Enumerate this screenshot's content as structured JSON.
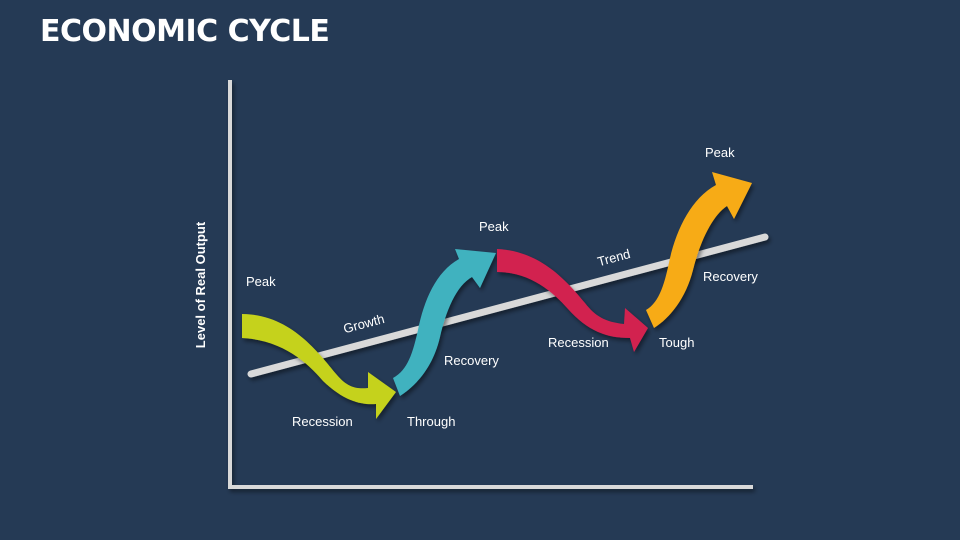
{
  "title": "ECONOMIC CYCLE",
  "axis": {
    "y_label": "Level of Real Output"
  },
  "line_labels": {
    "growth": "Growth",
    "trend": "Trend"
  },
  "phases": {
    "peak_1": "Peak",
    "recession_1": "Recession",
    "through": "Through",
    "recovery_1": "Recovery",
    "peak_2": "Peak",
    "recession_2": "Recession",
    "tough": "Tough",
    "recovery_2": "Recovery",
    "peak_3": "Peak"
  },
  "colors": {
    "background": "#253a55",
    "axis": "#d9d9d9",
    "trend_line": "#d9d9d9",
    "arrow_recession_1": "#c5d21f",
    "arrow_recovery_1": "#3fb2bf",
    "arrow_recession_2": "#d2204f",
    "arrow_recovery_2": "#f7ab17"
  }
}
